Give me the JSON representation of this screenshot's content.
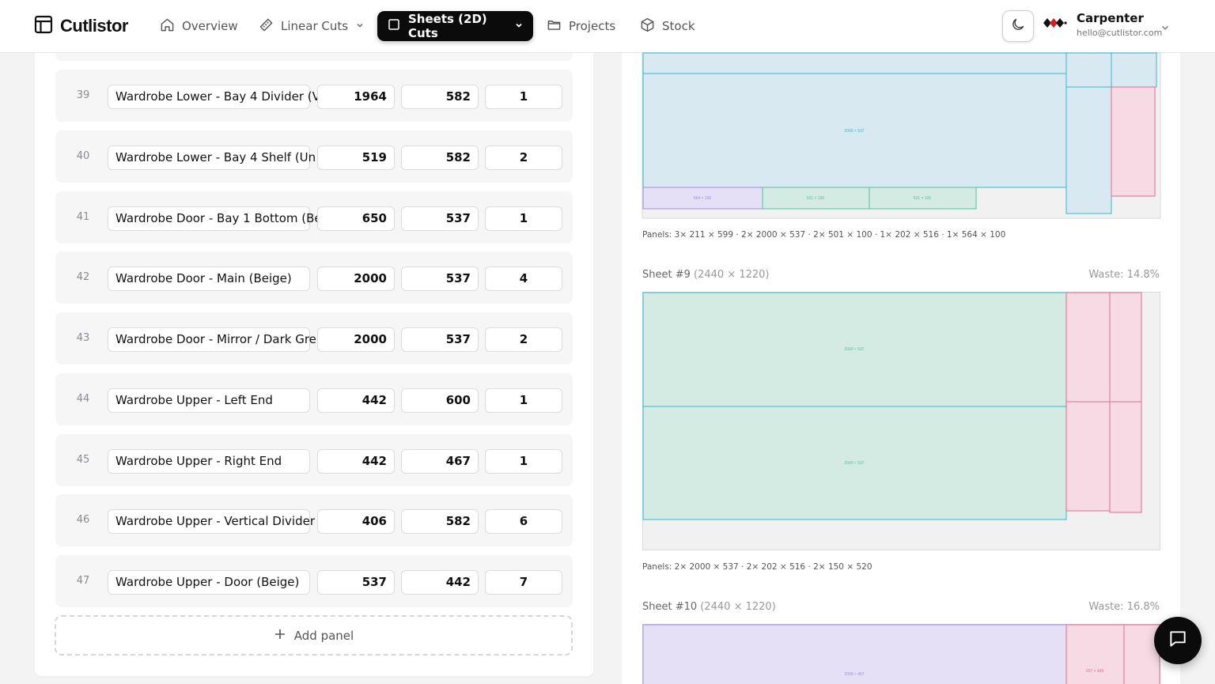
{
  "app": {
    "name": "Cutlistor",
    "logo_icon": "layout-icon"
  },
  "nav": [
    {
      "label": "Overview",
      "icon": "home-icon",
      "active": false,
      "dropdown": false
    },
    {
      "label": "Linear Cuts",
      "icon": "ruler-icon",
      "active": false,
      "dropdown": true
    },
    {
      "label": "Sheets (2D) Cuts",
      "icon": "square-icon",
      "active": true,
      "dropdown": true
    },
    {
      "label": "Projects",
      "icon": "folder-icon",
      "active": false,
      "dropdown": false
    },
    {
      "label": "Stock",
      "icon": "box-icon",
      "active": false,
      "dropdown": false
    }
  ],
  "user": {
    "name": "Carpenter",
    "email": "hello@cutlistor.com"
  },
  "panels": [
    {
      "num": "39",
      "name": "Wardrobe Lower - Bay 4 Divider (V",
      "length": "1964",
      "width": "582",
      "qty": "1"
    },
    {
      "num": "40",
      "name": "Wardrobe Lower - Bay 4 Shelf (Un",
      "length": "519",
      "width": "582",
      "qty": "2"
    },
    {
      "num": "41",
      "name": "Wardrobe Door - Bay 1 Bottom (Be",
      "length": "650",
      "width": "537",
      "qty": "1"
    },
    {
      "num": "42",
      "name": "Wardrobe Door - Main (Beige)",
      "length": "2000",
      "width": "537",
      "qty": "4"
    },
    {
      "num": "43",
      "name": "Wardrobe Door - Mirror / Dark Gre",
      "length": "2000",
      "width": "537",
      "qty": "2"
    },
    {
      "num": "44",
      "name": "Wardrobe Upper - Left End",
      "length": "442",
      "width": "600",
      "qty": "1"
    },
    {
      "num": "45",
      "name": "Wardrobe Upper - Right End",
      "length": "442",
      "width": "467",
      "qty": "1"
    },
    {
      "num": "46",
      "name": "Wardrobe Upper - Vertical Divider",
      "length": "406",
      "width": "582",
      "qty": "6"
    },
    {
      "num": "47",
      "name": "Wardrobe Upper - Door (Beige)",
      "length": "537",
      "width": "442",
      "qty": "7"
    }
  ],
  "add_panel_label": "Add panel",
  "sheets": {
    "sheet8": {
      "caption": "Panels: 3× 211 × 599 · 2× 2000 × 537 · 2× 501 × 100 · 1× 202 × 516 · 1× 564 × 100",
      "labels": [
        "2000 × 537",
        "564 × 100",
        "501 × 100",
        "501 × 100"
      ]
    },
    "sheet9": {
      "title": "Sheet #9",
      "dims": "(2440 × 1220)",
      "waste": "Waste: 14.8%",
      "caption": "Panels: 2× 2000 × 537 · 2× 202 × 516 · 2× 150 × 520",
      "labels": [
        "2000 × 537",
        "2000 × 537"
      ]
    },
    "sheet10": {
      "title": "Sheet #10",
      "dims": "(2440 × 1220)",
      "waste": "Waste: 16.8%",
      "labels": [
        "2000 × 467",
        "267 × 449"
      ]
    }
  },
  "colors": {
    "accent": "#0b0b0c",
    "cyan_fill": "#d8e9f1",
    "cyan_stroke": "#35b9d0",
    "green_fill": "#d4ebe4",
    "pink_fill": "#f6dbe4",
    "pink_stroke": "#e46b90",
    "purple_fill": "#e5e0f5",
    "purple_stroke": "#9a8fdd"
  },
  "chat_icon": "chat-icon"
}
